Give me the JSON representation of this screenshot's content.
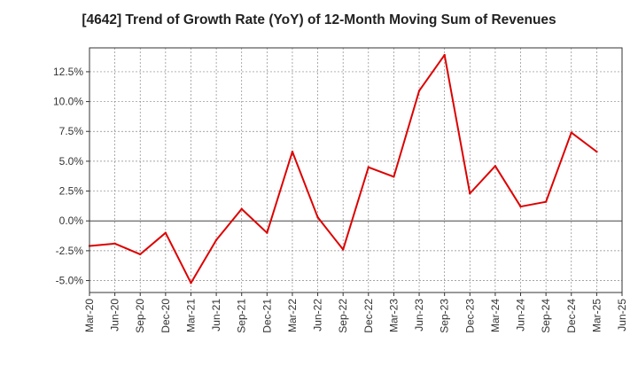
{
  "chart_data": {
    "type": "line",
    "title": "[4642]  Trend of Growth Rate (YoY) of 12-Month Moving Sum of Revenues",
    "xlabel": "",
    "ylabel": "",
    "x": [
      "Mar-20",
      "Jun-20",
      "Sep-20",
      "Dec-20",
      "Mar-21",
      "Jun-21",
      "Sep-21",
      "Dec-21",
      "Mar-22",
      "Jun-22",
      "Sep-22",
      "Dec-22",
      "Mar-23",
      "Jun-23",
      "Sep-23",
      "Dec-23",
      "Mar-24",
      "Jun-24",
      "Sep-24",
      "Dec-24",
      "Mar-25"
    ],
    "x_tick_labels": [
      "Mar-20",
      "Jun-20",
      "Sep-20",
      "Dec-20",
      "Mar-21",
      "Jun-21",
      "Sep-21",
      "Dec-21",
      "Mar-22",
      "Jun-22",
      "Sep-22",
      "Dec-22",
      "Mar-23",
      "Jun-23",
      "Sep-23",
      "Dec-23",
      "Mar-24",
      "Jun-24",
      "Sep-24",
      "Dec-24",
      "Mar-25",
      "Jun-25"
    ],
    "y_ticks": [
      -5.0,
      -2.5,
      0.0,
      2.5,
      5.0,
      7.5,
      10.0,
      12.5
    ],
    "y_tick_labels": [
      "-5.0%",
      "-2.5%",
      "0.0%",
      "2.5%",
      "5.0%",
      "7.5%",
      "10.0%",
      "12.5%"
    ],
    "ylim": [
      -6.0,
      14.5
    ],
    "grid": true,
    "series": [
      {
        "values": [
          -2.1,
          -1.9,
          -2.8,
          -1.0,
          -5.2,
          -1.6,
          1.0,
          -1.0,
          5.8,
          0.3,
          -2.4,
          4.5,
          3.7,
          10.9,
          13.9,
          2.3,
          4.6,
          1.2,
          1.6,
          7.4,
          5.8
        ],
        "color": "#dd0000"
      }
    ]
  }
}
